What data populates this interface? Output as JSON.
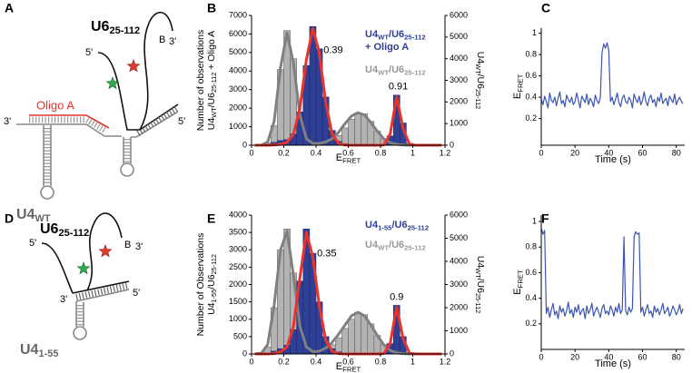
{
  "panels": [
    "A",
    "B",
    "C",
    "D",
    "E",
    "F"
  ],
  "diagrams": {
    "A": {
      "u6": [
        [
          "U6",
          "25-112"
        ]
      ],
      "u6_five": "5'",
      "biotin": "B",
      "u6_three": "3'",
      "oligo": "Oligo A",
      "u4_three": "3'",
      "u4_five": "5'",
      "u4": [
        [
          "U4",
          "WT"
        ]
      ]
    },
    "D": {
      "u6": [
        [
          "U6",
          "25-112"
        ]
      ],
      "u6_five": "5'",
      "biotin": "B",
      "u6_three": "3'",
      "u4_three": "3'",
      "u4_five": "5'",
      "u4": [
        [
          "U4",
          "1-55"
        ]
      ]
    }
  },
  "chart_data": [
    {
      "type": "histogram",
      "bins": [
        0,
        0.04,
        0.08,
        0.12,
        0.16,
        0.2,
        0.24,
        0.28,
        0.32,
        0.36,
        0.4,
        0.44,
        0.48,
        0.52,
        0.56,
        0.6,
        0.64,
        0.68,
        0.72,
        0.76,
        0.8,
        0.84,
        0.88,
        0.92,
        0.96,
        1,
        1.04,
        1.08,
        1.12,
        1.16,
        1.2
      ],
      "xlim": [
        0,
        1.2
      ],
      "xticks": [
        0,
        0.2,
        0.4,
        0.6,
        0.8,
        1,
        1.2
      ],
      "ylim": [
        0,
        7000
      ],
      "yticks": [
        0,
        1000,
        2000,
        3000,
        4000,
        5000,
        6000,
        7000
      ],
      "y2lim": [
        0,
        6000
      ],
      "y2ticks": [
        0,
        1000,
        2000,
        3000,
        4000,
        5000,
        6000
      ],
      "xlabel": [
        [
          "E",
          "FRET"
        ]
      ],
      "ylabel": [
        [
          "Number of observations"
        ],
        [
          "U4",
          "WT",
          "/U6",
          "25-112",
          " + Oligo A"
        ]
      ],
      "y2label": [
        [
          "U4",
          "WT",
          "/U6",
          "25-112"
        ]
      ],
      "series": [
        {
          "name": [
            [
              "U4",
              "WT",
              "/U6",
              "25-112"
            ],
            [
              "+ Oligo A"
            ]
          ],
          "color": "#2e3f95",
          "axis": "y",
          "values": [
            0,
            0,
            50,
            150,
            250,
            300,
            600,
            1800,
            4300,
            6400,
            5200,
            2600,
            800,
            200,
            80,
            50,
            40,
            30,
            20,
            20,
            50,
            500,
            2700,
            1200,
            100,
            0,
            0,
            0,
            0,
            0
          ]
        },
        {
          "name": [
            [
              "U4",
              "WT",
              "/U6",
              "25-112"
            ]
          ],
          "color": "#b3b3b3",
          "axis": "y2",
          "values": [
            0,
            20,
            100,
            900,
            3500,
            5300,
            4000,
            1500,
            400,
            150,
            100,
            150,
            250,
            450,
            800,
            1200,
            1500,
            1450,
            1100,
            650,
            300,
            100,
            40,
            10,
            0,
            0,
            0,
            0,
            0,
            0
          ]
        }
      ],
      "fits": [
        {
          "color": "#e8342c",
          "axis": "y",
          "values": [
            0,
            0,
            0,
            10,
            50,
            150,
            600,
            2000,
            4600,
            6300,
            5000,
            2300,
            600,
            100,
            10,
            0,
            0,
            0,
            0,
            0,
            10,
            600,
            2600,
            900,
            50,
            0,
            0,
            0,
            0,
            0
          ]
        },
        {
          "color": "#808080",
          "axis": "y2",
          "values": [
            0,
            0,
            150,
            1100,
            3600,
            5200,
            3800,
            1400,
            300,
            80,
            80,
            150,
            300,
            600,
            1000,
            1350,
            1500,
            1400,
            1050,
            650,
            300,
            120,
            40,
            10,
            0,
            0,
            0,
            0,
            0,
            0
          ]
        }
      ],
      "peak_labels": [
        0.39,
        0.91
      ]
    },
    {
      "type": "line",
      "x": [
        0,
        1,
        2,
        3,
        4,
        5,
        6,
        7,
        8,
        9,
        10,
        11,
        12,
        13,
        14,
        15,
        16,
        17,
        18,
        19,
        20,
        21,
        22,
        23,
        24,
        25,
        26,
        27,
        28,
        29,
        30,
        31,
        32,
        33,
        34,
        35,
        36,
        37,
        38,
        39,
        40,
        41,
        42,
        43,
        44,
        45,
        46,
        47,
        48,
        49,
        50,
        51,
        52,
        53,
        54,
        55,
        56,
        57,
        58,
        59,
        60,
        61,
        62,
        63,
        64,
        65,
        66,
        67,
        68,
        69,
        70,
        71,
        72,
        73,
        74,
        75,
        76,
        77,
        78,
        79,
        80,
        81,
        82,
        83,
        84
      ],
      "values": [
        0.38,
        0.33,
        0.41,
        0.36,
        0.3,
        0.44,
        0.37,
        0.35,
        0.4,
        0.32,
        0.39,
        0.45,
        0.34,
        0.37,
        0.31,
        0.42,
        0.38,
        0.35,
        0.4,
        0.33,
        0.36,
        0.44,
        0.37,
        0.3,
        0.41,
        0.38,
        0.35,
        0.43,
        0.33,
        0.39,
        0.36,
        0.31,
        0.42,
        0.37,
        0.34,
        0.4,
        0.82,
        0.9,
        0.86,
        0.91,
        0.84,
        0.36,
        0.4,
        0.33,
        0.38,
        0.44,
        0.35,
        0.31,
        0.39,
        0.42,
        0.36,
        0.34,
        0.4,
        0.37,
        0.3,
        0.43,
        0.38,
        0.35,
        0.41,
        0.33,
        0.37,
        0.45,
        0.36,
        0.32,
        0.39,
        0.42,
        0.35,
        0.38,
        0.31,
        0.4,
        0.36,
        0.44,
        0.34,
        0.37,
        0.39,
        0.32,
        0.41,
        0.38,
        0.35,
        0.43,
        0.33,
        0.37,
        0.4,
        0.36,
        0.34
      ],
      "color": "#3a54b4",
      "xlim": [
        0,
        85
      ],
      "xticks": [
        0,
        20,
        40,
        60,
        80
      ],
      "ylim": [
        -0.05,
        1.05
      ],
      "yticks": [
        0.2,
        0.4,
        0.6,
        0.8,
        1
      ],
      "xlabel": [
        [
          "Time (s)"
        ]
      ],
      "ylabel": [
        [
          "E",
          "FRET"
        ]
      ]
    },
    {
      "type": "histogram",
      "bins": [
        0,
        0.04,
        0.08,
        0.12,
        0.16,
        0.2,
        0.24,
        0.28,
        0.32,
        0.36,
        0.4,
        0.44,
        0.48,
        0.52,
        0.56,
        0.6,
        0.64,
        0.68,
        0.72,
        0.76,
        0.8,
        0.84,
        0.88,
        0.92,
        0.96,
        1,
        1.04,
        1.08,
        1.12,
        1.16,
        1.2
      ],
      "xlim": [
        0,
        1.2
      ],
      "xticks": [
        0,
        0.2,
        0.4,
        0.6,
        0.8,
        1,
        1.2
      ],
      "ylim": [
        0,
        4000
      ],
      "yticks": [
        0,
        500,
        1000,
        1500,
        2000,
        2500,
        3000,
        3500,
        4000
      ],
      "y2lim": [
        0,
        6000
      ],
      "y2ticks": [
        0,
        1000,
        2000,
        3000,
        4000,
        5000,
        6000
      ],
      "xlabel": [
        [
          "E",
          "FRET"
        ]
      ],
      "ylabel": [
        [
          "Number of Observations"
        ],
        [
          "U4",
          "1-55",
          "/U6",
          "25-112"
        ]
      ],
      "y2label": [
        [
          "U4",
          "WT",
          "/U6",
          "25-112"
        ]
      ],
      "series": [
        {
          "name": [
            [
              "U4",
              "1-55",
              "/U6",
              "25-112"
            ]
          ],
          "color": "#2e3f95",
          "axis": "y",
          "values": [
            0,
            0,
            30,
            80,
            150,
            250,
            700,
            2100,
            3600,
            2900,
            1500,
            500,
            150,
            60,
            30,
            20,
            20,
            20,
            15,
            15,
            30,
            300,
            1400,
            500,
            40,
            0,
            0,
            0,
            0,
            0
          ]
        },
        {
          "name": [
            [
              "U4",
              "WT",
              "/U6",
              "25-112"
            ]
          ],
          "color": "#b3b3b3",
          "axis": "y2",
          "values": [
            0,
            20,
            300,
            2000,
            4500,
            5400,
            3500,
            1200,
            350,
            150,
            120,
            200,
            400,
            700,
            1100,
            1500,
            1800,
            1700,
            1300,
            800,
            400,
            150,
            50,
            10,
            0,
            0,
            0,
            0,
            0,
            0
          ]
        }
      ],
      "fits": [
        {
          "color": "#e8342c",
          "axis": "y",
          "values": [
            0,
            0,
            0,
            10,
            60,
            200,
            800,
            2200,
            3500,
            2800,
            1400,
            400,
            80,
            10,
            0,
            0,
            0,
            0,
            0,
            0,
            10,
            300,
            1350,
            450,
            20,
            0,
            0,
            0,
            0,
            0
          ]
        },
        {
          "color": "#808080",
          "axis": "y2",
          "values": [
            0,
            30,
            400,
            2100,
            4500,
            5300,
            3400,
            1200,
            300,
            100,
            120,
            250,
            500,
            850,
            1250,
            1650,
            1800,
            1650,
            1250,
            800,
            400,
            150,
            50,
            10,
            0,
            0,
            0,
            0,
            0,
            0
          ]
        }
      ],
      "peak_labels": [
        0.35,
        0.9
      ]
    },
    {
      "type": "line",
      "x": [
        0,
        1,
        2,
        3,
        4,
        5,
        6,
        7,
        8,
        9,
        10,
        11,
        12,
        13,
        14,
        15,
        16,
        17,
        18,
        19,
        20,
        21,
        22,
        23,
        24,
        25,
        26,
        27,
        28,
        29,
        30,
        31,
        32,
        33,
        34,
        35,
        36,
        37,
        38,
        39,
        40,
        41,
        42,
        43,
        44,
        45,
        46,
        47,
        48,
        49,
        50,
        51,
        52,
        53,
        54,
        55,
        56,
        57,
        58,
        59,
        60,
        61,
        62,
        63,
        64,
        65,
        66,
        67,
        68,
        69,
        70,
        71,
        72,
        73,
        74,
        75,
        76,
        77,
        78,
        79,
        80,
        81,
        82,
        83,
        84
      ],
      "values": [
        0.95,
        0.9,
        0.93,
        0.28,
        0.33,
        0.25,
        0.31,
        0.36,
        0.27,
        0.3,
        0.24,
        0.34,
        0.29,
        0.32,
        0.26,
        0.3,
        0.37,
        0.28,
        0.31,
        0.25,
        0.33,
        0.29,
        0.35,
        0.27,
        0.3,
        0.32,
        0.24,
        0.34,
        0.28,
        0.31,
        0.36,
        0.26,
        0.3,
        0.33,
        0.29,
        0.25,
        0.32,
        0.35,
        0.28,
        0.3,
        0.27,
        0.34,
        0.31,
        0.26,
        0.33,
        0.29,
        0.36,
        0.28,
        0.31,
        0.88,
        0.3,
        0.27,
        0.33,
        0.29,
        0.32,
        0.88,
        0.92,
        0.9,
        0.91,
        0.29,
        0.33,
        0.26,
        0.31,
        0.35,
        0.28,
        0.3,
        0.25,
        0.34,
        0.29,
        0.32,
        0.27,
        0.31,
        0.36,
        0.28,
        0.3,
        0.33,
        0.26,
        0.29,
        0.34,
        0.31,
        0.27,
        0.3,
        0.35,
        0.28,
        0.32
      ],
      "color": "#3a54b4",
      "xlim": [
        0,
        85
      ],
      "xticks": [
        0,
        20,
        40,
        60,
        80
      ],
      "ylim": [
        0,
        1.05
      ],
      "yticks": [
        0.2,
        0.4,
        0.6,
        0.8,
        1
      ],
      "xlabel": [
        [
          "Time (s)"
        ]
      ],
      "ylabel": [
        [
          "E",
          "FRET"
        ]
      ]
    }
  ]
}
